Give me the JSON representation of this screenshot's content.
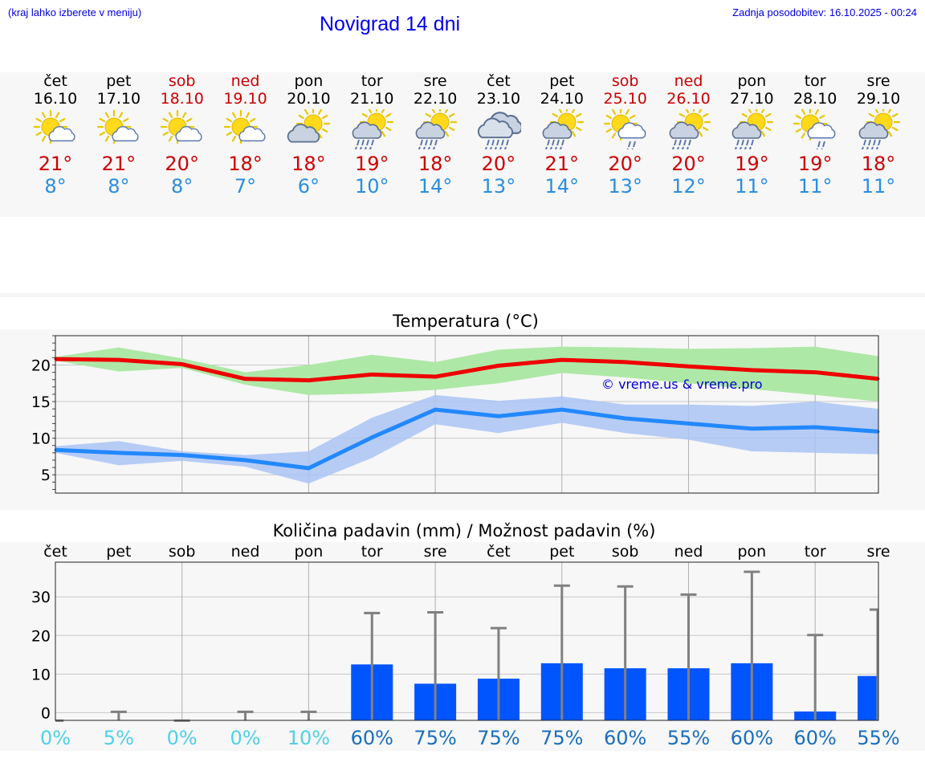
{
  "header": {
    "menu_hint": "(kraj lahko izberete v meniju)",
    "title": "Novigrad 14 dni",
    "last_update": "Zadnja posodobitev: 16.10.2025 - 00:24"
  },
  "days": [
    {
      "name": "čet",
      "date": "16.10",
      "weekend": false,
      "icon": "sun-cloud-icon",
      "max": "21°",
      "min": "8°"
    },
    {
      "name": "pet",
      "date": "17.10",
      "weekend": false,
      "icon": "sun-cloud-icon",
      "max": "21°",
      "min": "8°"
    },
    {
      "name": "sob",
      "date": "18.10",
      "weekend": true,
      "icon": "sun-cloud-icon",
      "max": "20°",
      "min": "8°"
    },
    {
      "name": "ned",
      "date": "19.10",
      "weekend": true,
      "icon": "sun-cloud-icon",
      "max": "18°",
      "min": "7°"
    },
    {
      "name": "pon",
      "date": "20.10",
      "weekend": false,
      "icon": "cloud-sun-icon",
      "max": "18°",
      "min": "6°"
    },
    {
      "name": "tor",
      "date": "21.10",
      "weekend": false,
      "icon": "sun-cloud-rain-icon",
      "max": "19°",
      "min": "10°"
    },
    {
      "name": "sre",
      "date": "22.10",
      "weekend": false,
      "icon": "sun-cloud-rain-icon",
      "max": "18°",
      "min": "14°"
    },
    {
      "name": "čet",
      "date": "23.10",
      "weekend": false,
      "icon": "cloud-rain-icon",
      "max": "20°",
      "min": "13°"
    },
    {
      "name": "pet",
      "date": "24.10",
      "weekend": false,
      "icon": "sun-cloud-rain-icon",
      "max": "21°",
      "min": "14°"
    },
    {
      "name": "sob",
      "date": "25.10",
      "weekend": true,
      "icon": "sun-cloud-light-rain-icon",
      "max": "20°",
      "min": "13°"
    },
    {
      "name": "ned",
      "date": "26.10",
      "weekend": true,
      "icon": "sun-cloud-rain-icon",
      "max": "20°",
      "min": "12°"
    },
    {
      "name": "pon",
      "date": "27.10",
      "weekend": false,
      "icon": "sun-cloud-rain-icon",
      "max": "19°",
      "min": "11°"
    },
    {
      "name": "tor",
      "date": "28.10",
      "weekend": false,
      "icon": "sun-cloud-light-rain-icon",
      "max": "19°",
      "min": "11°"
    },
    {
      "name": "sre",
      "date": "29.10",
      "weekend": false,
      "icon": "sun-cloud-rain-icon",
      "max": "18°",
      "min": "11°"
    }
  ],
  "colors": {
    "max_line": "#ee0000",
    "max_band": "#aee8a6",
    "min_line": "#2288ff",
    "min_band": "#aac4f4",
    "bar": "#0055ff",
    "error_bar": "#808080",
    "pct_low": "#4fd0e8",
    "pct_high": "#1a6ebd",
    "watermark": "#0000cc"
  },
  "chart_data": [
    {
      "type": "line",
      "title": "Temperatura (°C)",
      "watermark": "© vreme.us & vreme.pro",
      "ylim": [
        2.5,
        24
      ],
      "yticks": [
        5,
        10,
        15,
        20
      ],
      "grid": true,
      "x": [
        "16.10",
        "17.10",
        "18.10",
        "19.10",
        "20.10",
        "21.10",
        "22.10",
        "23.10",
        "24.10",
        "25.10",
        "26.10",
        "27.10",
        "28.10",
        "29.10"
      ],
      "series": [
        {
          "role": "max",
          "values": [
            20.8,
            20.7,
            20.1,
            18.1,
            17.9,
            18.7,
            18.4,
            19.9,
            20.7,
            20.4,
            19.8,
            19.3,
            19.0,
            18.1
          ],
          "band_high": [
            21.1,
            22.4,
            20.9,
            19.0,
            20.0,
            21.4,
            20.4,
            22.1,
            22.5,
            22.4,
            22.2,
            22.3,
            22.5,
            21.2
          ],
          "band_low": [
            20.6,
            19.1,
            19.6,
            17.3,
            15.9,
            16.1,
            16.6,
            17.5,
            18.9,
            18.3,
            17.5,
            16.7,
            15.9,
            15.0
          ]
        },
        {
          "role": "min",
          "values": [
            8.4,
            8.0,
            7.7,
            7.0,
            5.9,
            10.1,
            13.9,
            13.0,
            13.9,
            12.7,
            12.0,
            11.3,
            11.5,
            10.9
          ],
          "band_high": [
            8.9,
            9.6,
            8.2,
            7.7,
            8.2,
            12.8,
            15.9,
            15.1,
            15.7,
            14.6,
            14.6,
            14.4,
            15.0,
            14.0
          ],
          "band_low": [
            8.0,
            6.3,
            6.9,
            6.1,
            3.8,
            7.3,
            11.9,
            10.7,
            12.1,
            10.7,
            9.8,
            8.2,
            8.0,
            7.8
          ]
        }
      ]
    },
    {
      "type": "bar",
      "title": "Količina padavin (mm) / Možnost padavin (%)",
      "categories": [
        "čet",
        "pet",
        "sob",
        "ned",
        "pon",
        "tor",
        "sre",
        "čet",
        "pet",
        "sob",
        "ned",
        "pon",
        "tor",
        "sre"
      ],
      "ylim": [
        -2,
        39
      ],
      "yticks": [
        0,
        10,
        20,
        30
      ],
      "grid": true,
      "amount": [
        0,
        0,
        0,
        0,
        0,
        12.5,
        7.5,
        8.8,
        12.8,
        11.5,
        11.5,
        12.8,
        0.3,
        9.5
      ],
      "amount_max": [
        0,
        0.2,
        0,
        0.2,
        0.2,
        25.8,
        26.0,
        21.9,
        32.9,
        32.7,
        30.6,
        36.5,
        20.1,
        26.7
      ],
      "probability": [
        "0%",
        "5%",
        "0%",
        "0%",
        "10%",
        "60%",
        "75%",
        "75%",
        "75%",
        "60%",
        "55%",
        "60%",
        "60%",
        "55%"
      ]
    }
  ]
}
